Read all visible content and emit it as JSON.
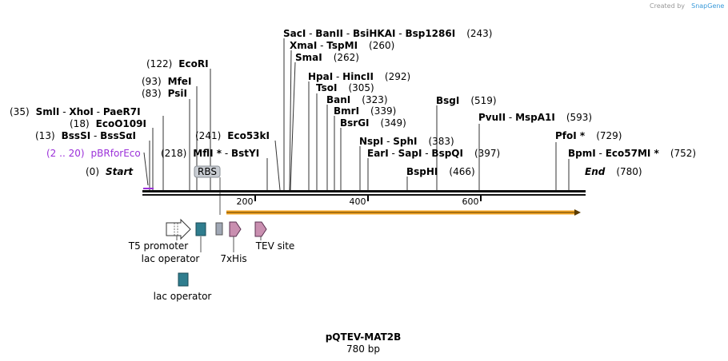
{
  "credit": {
    "text": "Created by",
    "brand": "SnapGene"
  },
  "plasmid": {
    "name": "pQTEV-MAT2B",
    "length": "780 bp"
  },
  "sites": [
    {
      "pos": "(243)",
      "parts": [
        "SacI",
        " - ",
        "BanII",
        " - ",
        "BsiHKAI",
        " - ",
        "Bsp1286I"
      ]
    },
    {
      "pos": "(260)",
      "parts": [
        "XmaI",
        " - ",
        "TspMI"
      ]
    },
    {
      "pos": "(262)",
      "parts": [
        "SmaI"
      ]
    },
    {
      "pos": "(292)",
      "parts": [
        "HpaI",
        " - ",
        "HincII"
      ]
    },
    {
      "pos": "(305)",
      "parts": [
        "TsoI"
      ]
    },
    {
      "pos": "(323)",
      "parts": [
        "BanI"
      ]
    },
    {
      "pos": "(339)",
      "parts": [
        "BmrI"
      ]
    },
    {
      "pos": "(349)",
      "parts": [
        "BsrGI"
      ]
    },
    {
      "pos": "(383)",
      "parts": [
        "NspI",
        " - ",
        "SphI"
      ]
    },
    {
      "pos": "(397)",
      "parts": [
        "EarI",
        " - ",
        "SapI",
        " - ",
        "BspQI"
      ]
    },
    {
      "pos": "(466)",
      "parts": [
        "BspHI"
      ]
    },
    {
      "pos": "(519)",
      "parts": [
        "BsgI"
      ]
    },
    {
      "pos": "(593)",
      "parts": [
        "PvuII",
        " - ",
        "MspA1I"
      ]
    },
    {
      "pos": "(729)",
      "parts": [
        "PfoI *"
      ]
    },
    {
      "pos": "(752)",
      "parts": [
        "BpmI",
        " - ",
        "Eco57MI *"
      ]
    },
    {
      "pos": "(122)",
      "parts": [
        "EcoRI"
      ]
    },
    {
      "pos": "(93)",
      "parts": [
        "MfeI"
      ]
    },
    {
      "pos": "(83)",
      "parts": [
        "PsiI"
      ]
    },
    {
      "pos": "(35)",
      "parts": [
        "SmlI",
        " - ",
        "XhoI",
        " - ",
        "PaeR7I"
      ]
    },
    {
      "pos": "(18)",
      "parts": [
        "EcoO109I"
      ]
    },
    {
      "pos": "(13)",
      "parts": [
        "BssSI",
        " - ",
        "BssSαI"
      ]
    },
    {
      "pos": "(218)",
      "parts": [
        "MflI *",
        " - ",
        "BstYI"
      ]
    },
    {
      "pos": "(241)",
      "parts": [
        "Eco53kI"
      ]
    }
  ],
  "start": {
    "pos": "(0)",
    "label": "Start"
  },
  "end": {
    "label": "End",
    "pos": "(780)"
  },
  "primer": {
    "pos": "(2 .. 20)",
    "label": "pBRforEco",
    "color": "#9b30d9"
  },
  "ruler": [
    "200",
    "400",
    "600"
  ],
  "features": {
    "rbs": "RBS",
    "t5": "T5 promoter",
    "lac1": "lac operator",
    "his": "7xHis",
    "tev": "TEV site",
    "lac2": "lac operator"
  },
  "colors": {
    "orf": "#f5a623",
    "lac": "#2f7d8e",
    "his": "#c98fb0",
    "tag": "#a0a8b5"
  }
}
